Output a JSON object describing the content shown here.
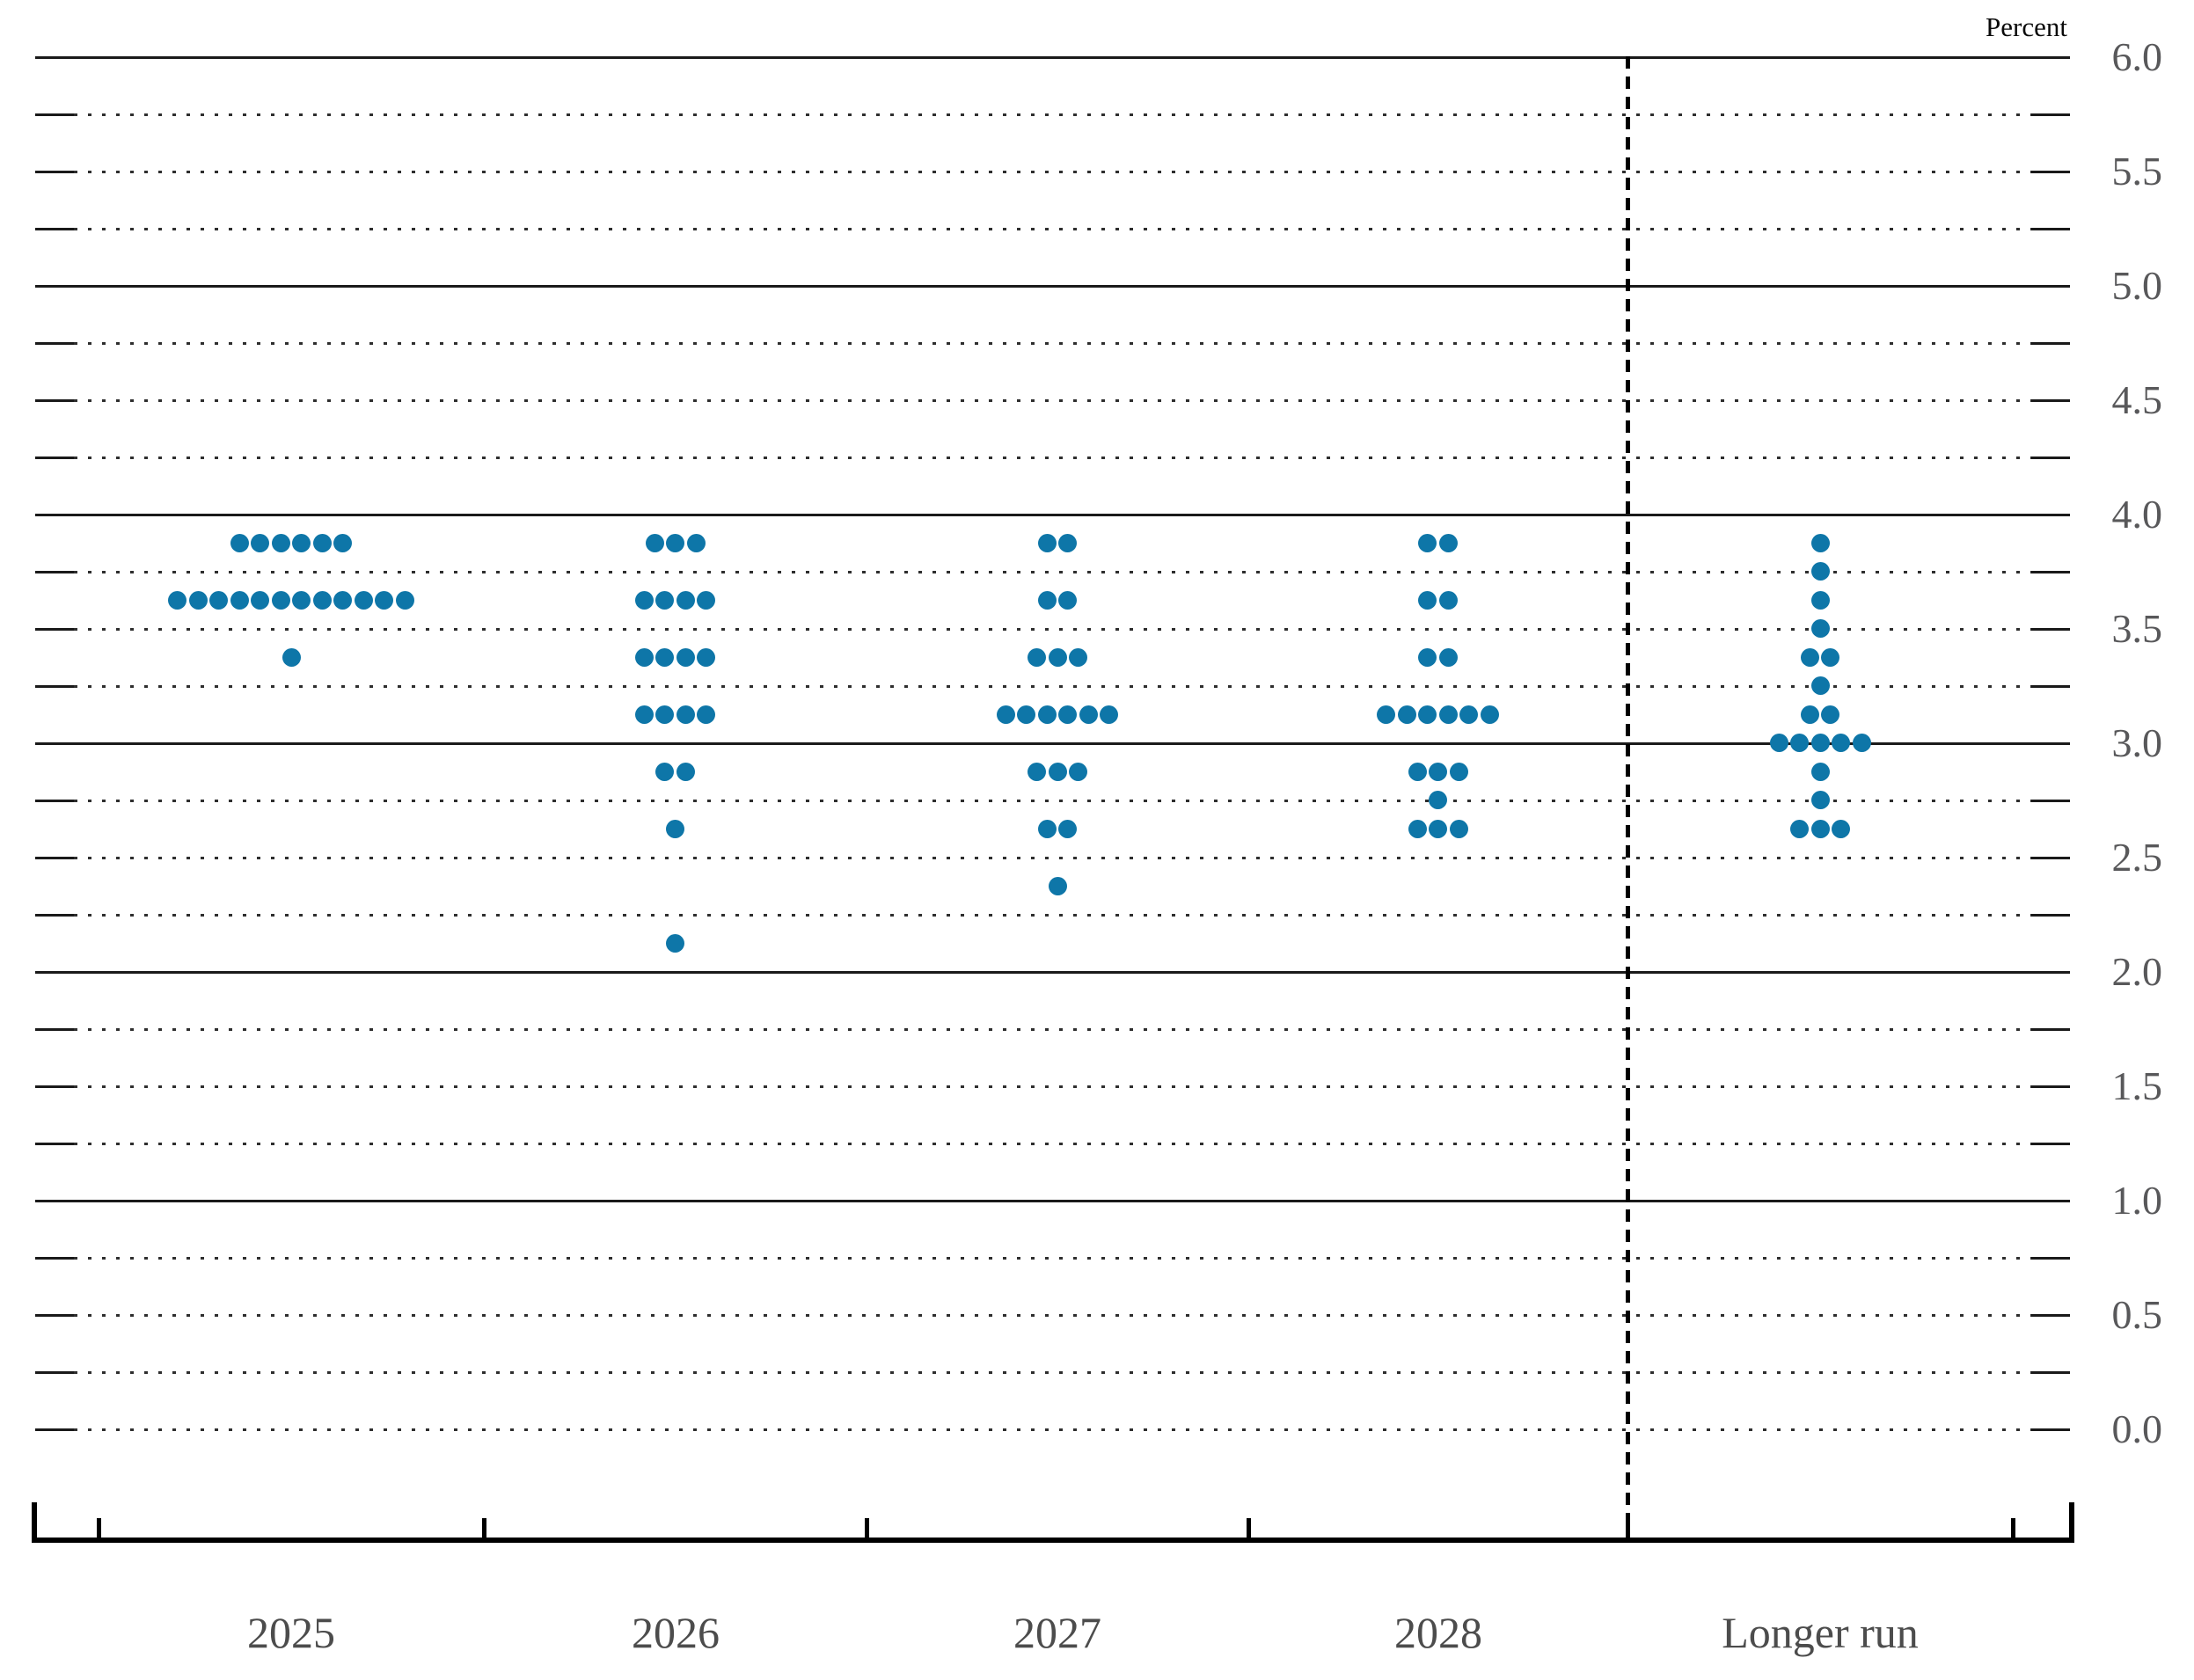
{
  "chart_data": {
    "type": "scatter",
    "subtype": "fomc-dot-plot",
    "unit_label": "Percent",
    "x_categories": [
      "2025",
      "2026",
      "2027",
      "2028",
      "Longer run"
    ],
    "y_axis": {
      "min": 0.0,
      "max": 6.0,
      "grid_step": 0.25,
      "label_step": 0.5,
      "labels": [
        "6.0",
        "5.5",
        "5.0",
        "4.5",
        "4.0",
        "3.5",
        "3.0",
        "2.5",
        "2.0",
        "1.5",
        "1.0",
        "0.5",
        "0.0"
      ],
      "solid_lines_at": [
        1.0,
        2.0,
        3.0,
        4.0,
        5.0,
        6.0
      ],
      "grid_on": true
    },
    "separator": {
      "style": "dashed-vertical-line",
      "between": [
        "2028",
        "Longer run"
      ]
    },
    "series": [
      {
        "category": "2025",
        "dots": [
          {
            "rate": 3.875,
            "count": 6
          },
          {
            "rate": 3.625,
            "count": 12
          },
          {
            "rate": 3.375,
            "count": 1
          }
        ]
      },
      {
        "category": "2026",
        "dots": [
          {
            "rate": 3.875,
            "count": 3
          },
          {
            "rate": 3.625,
            "count": 4
          },
          {
            "rate": 3.375,
            "count": 4
          },
          {
            "rate": 3.125,
            "count": 4
          },
          {
            "rate": 2.875,
            "count": 2
          },
          {
            "rate": 2.625,
            "count": 1
          },
          {
            "rate": 2.125,
            "count": 1
          }
        ]
      },
      {
        "category": "2027",
        "dots": [
          {
            "rate": 3.875,
            "count": 2
          },
          {
            "rate": 3.625,
            "count": 2
          },
          {
            "rate": 3.375,
            "count": 3
          },
          {
            "rate": 3.125,
            "count": 6
          },
          {
            "rate": 2.875,
            "count": 3
          },
          {
            "rate": 2.625,
            "count": 2
          },
          {
            "rate": 2.375,
            "count": 1
          }
        ]
      },
      {
        "category": "2028",
        "dots": [
          {
            "rate": 3.875,
            "count": 2
          },
          {
            "rate": 3.625,
            "count": 2
          },
          {
            "rate": 3.375,
            "count": 2
          },
          {
            "rate": 3.125,
            "count": 6
          },
          {
            "rate": 2.875,
            "count": 3
          },
          {
            "rate": 2.75,
            "count": 1
          },
          {
            "rate": 2.625,
            "count": 3
          }
        ]
      },
      {
        "category": "Longer run",
        "dots": [
          {
            "rate": 3.875,
            "count": 1
          },
          {
            "rate": 3.75,
            "count": 1
          },
          {
            "rate": 3.625,
            "count": 1
          },
          {
            "rate": 3.5,
            "count": 1
          },
          {
            "rate": 3.375,
            "count": 2
          },
          {
            "rate": 3.25,
            "count": 1
          },
          {
            "rate": 3.125,
            "count": 2
          },
          {
            "rate": 3.0,
            "count": 5
          },
          {
            "rate": 2.875,
            "count": 1
          },
          {
            "rate": 2.75,
            "count": 1
          },
          {
            "rate": 2.625,
            "count": 3
          }
        ]
      }
    ],
    "colors": {
      "dot": "#0e76a8",
      "grid_solid": "#1a1a1a",
      "grid_dotted": "#2e2e2e",
      "axis": "#000000",
      "y_tick_label": "#58585a",
      "x_tick_label": "#4c4c4c",
      "unit_label": "#0a0a0a"
    }
  }
}
